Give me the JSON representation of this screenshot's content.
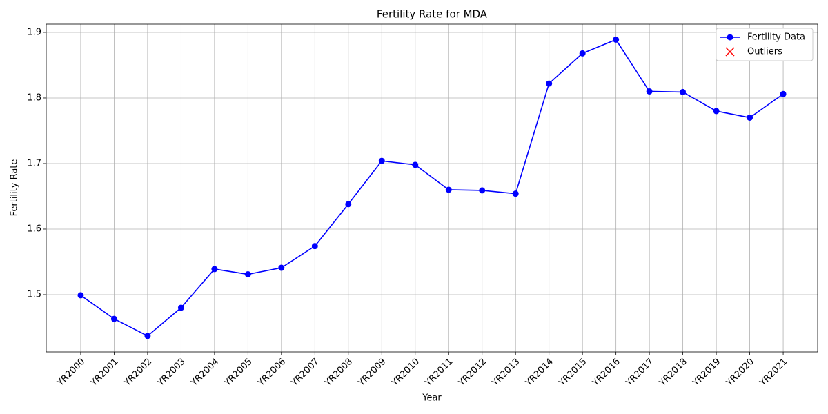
{
  "chart_data": {
    "type": "line",
    "title": "Fertility Rate for MDA",
    "xlabel": "Year",
    "ylabel": "Fertility Rate",
    "categories": [
      "YR2000",
      "YR2001",
      "YR2002",
      "YR2003",
      "YR2004",
      "YR2005",
      "YR2006",
      "YR2007",
      "YR2008",
      "YR2009",
      "YR2010",
      "YR2011",
      "YR2012",
      "YR2013",
      "YR2014",
      "YR2015",
      "YR2016",
      "YR2017",
      "YR2018",
      "YR2019",
      "YR2020",
      "YR2021"
    ],
    "series": [
      {
        "name": "Fertility Data",
        "color": "#0000ff",
        "marker": "o",
        "values": [
          1.499,
          1.463,
          1.437,
          1.48,
          1.539,
          1.531,
          1.541,
          1.574,
          1.638,
          1.704,
          1.698,
          1.66,
          1.659,
          1.654,
          1.822,
          1.868,
          1.889,
          1.81,
          1.809,
          1.78,
          1.77,
          1.806
        ]
      },
      {
        "name": "Outliers",
        "color": "#ff0000",
        "marker": "x",
        "values": [
          null,
          null,
          null,
          null,
          null,
          null,
          null,
          null,
          null,
          null,
          null,
          null,
          null,
          null,
          null,
          null,
          null,
          null,
          null,
          null,
          null,
          null
        ]
      }
    ],
    "ylim": [
      1.4126,
      1.9126
    ],
    "yticks": [
      1.5,
      1.6,
      1.7,
      1.8,
      1.9
    ],
    "grid": true,
    "legend": "upper right"
  }
}
